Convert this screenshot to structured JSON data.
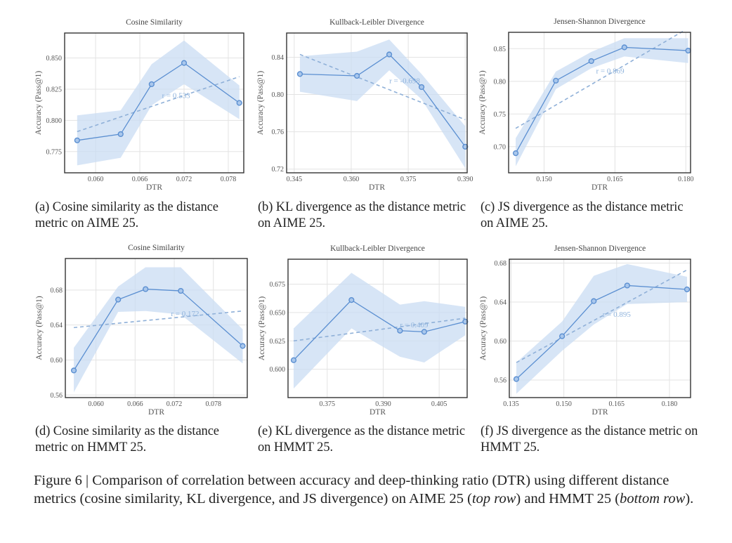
{
  "figure": {
    "caption_prefix": "Figure 6 | Comparison of correlation between accuracy and deep-thinking ratio (DTR) using different distance metrics (cosine similarity, KL divergence, and JS divergence) on AIME 25 (",
    "caption_em1": "top row",
    "caption_mid": ") and HMMT 25 (",
    "caption_em2": "bottom row",
    "caption_suffix": ")."
  },
  "colors": {
    "line": "#5b8fd1",
    "band": "#c9dcf3",
    "trend": "#8fb0d8",
    "frame": "#333333",
    "grid": "#e3e3e3"
  },
  "subcaptions": [
    "(a) Cosine similarity as the distance metric on AIME 25.",
    "(b) KL divergence as the distance metric on AIME 25.",
    "(c) JS divergence as the distance metric on AIME 25.",
    "(d) Cosine similarity as the distance metric on HMMT 25.",
    "(e) KL divergence as the distance metric on HMMT 25.",
    "(f) JS divergence as the distance metric on HMMT 25."
  ],
  "chart_data": [
    {
      "type": "line",
      "title": "Cosine Similarity",
      "xlabel": "DTR",
      "ylabel": "Accuracy (Pass@1)",
      "xlim": [
        0.0558,
        0.0801
      ],
      "ylim": [
        0.758,
        0.87
      ],
      "xticks": [
        0.06,
        0.066,
        0.072,
        0.078
      ],
      "xticklabels": [
        "0.060",
        "0.066",
        "0.072",
        "0.078"
      ],
      "yticks": [
        0.775,
        0.8,
        0.825,
        0.85
      ],
      "yticklabels": [
        "0.775",
        "0.800",
        "0.825",
        "0.850"
      ],
      "x": [
        0.0575,
        0.0634,
        0.0676,
        0.072,
        0.0795
      ],
      "y": [
        0.784,
        0.789,
        0.829,
        0.846,
        0.814
      ],
      "band_lower": [
        0.764,
        0.77,
        0.812,
        0.829,
        0.801
      ],
      "band_upper": [
        0.804,
        0.808,
        0.845,
        0.864,
        0.828
      ],
      "trend": [
        [
          0.0575,
          0.791
        ],
        [
          0.0795,
          0.835
        ]
      ],
      "r_label": "r = 0.533",
      "r_pos": [
        0.069,
        0.818
      ],
      "grid": true
    },
    {
      "type": "line",
      "title": "Kullback-Leibler Divergence",
      "xlabel": "DTR",
      "ylabel": "Accuracy (Pass@1)",
      "xlim": [
        0.343,
        0.3905
      ],
      "ylim": [
        0.716,
        0.866
      ],
      "xticks": [
        0.345,
        0.36,
        0.375,
        0.39
      ],
      "xticklabels": [
        "0.345",
        "0.360",
        "0.375",
        "0.390"
      ],
      "yticks": [
        0.72,
        0.76,
        0.8,
        0.84
      ],
      "yticklabels": [
        "0.72",
        "0.76",
        "0.80",
        "0.84"
      ],
      "x": [
        0.3465,
        0.3615,
        0.37,
        0.3785,
        0.39
      ],
      "y": [
        0.822,
        0.82,
        0.843,
        0.808,
        0.744
      ],
      "band_lower": [
        0.803,
        0.793,
        0.826,
        0.795,
        0.721
      ],
      "band_upper": [
        0.841,
        0.846,
        0.859,
        0.822,
        0.766
      ],
      "trend": [
        [
          0.3465,
          0.843
        ],
        [
          0.39,
          0.773
        ]
      ],
      "r_label": "r = -0.698",
      "r_pos": [
        0.37,
        0.812
      ],
      "grid": true
    },
    {
      "type": "line",
      "title": "Jensen-Shannon Divergence",
      "xlabel": "DTR",
      "ylabel": "Accuracy (Pass@1)",
      "xlim": [
        0.1425,
        0.181
      ],
      "ylim": [
        0.66,
        0.875
      ],
      "xticks": [
        0.15,
        0.165,
        0.18
      ],
      "xticklabels": [
        "0.150",
        "0.165",
        "0.180"
      ],
      "yticks": [
        0.7,
        0.75,
        0.8,
        0.85
      ],
      "yticklabels": [
        "0.70",
        "0.75",
        "0.80",
        "0.85"
      ],
      "x": [
        0.144,
        0.1525,
        0.16,
        0.167,
        0.1805
      ],
      "y": [
        0.69,
        0.801,
        0.831,
        0.852,
        0.847
      ],
      "band_lower": [
        0.67,
        0.788,
        0.82,
        0.838,
        0.828
      ],
      "band_upper": [
        0.713,
        0.815,
        0.845,
        0.866,
        0.866
      ],
      "trend": [
        [
          0.144,
          0.728
        ],
        [
          0.1795,
          0.877
        ]
      ],
      "r_label": "r = 0.869",
      "r_pos": [
        0.161,
        0.812
      ],
      "grid": true
    },
    {
      "type": "line",
      "title": "Cosine Similarity",
      "xlabel": "DTR",
      "ylabel": "Accuracy (Pass@1)",
      "xlim": [
        0.0553,
        0.0832
      ],
      "ylim": [
        0.557,
        0.716
      ],
      "xticks": [
        0.06,
        0.066,
        0.072,
        0.078
      ],
      "xticklabels": [
        "0.060",
        "0.066",
        "0.072",
        "0.078"
      ],
      "yticks": [
        0.56,
        0.6,
        0.64,
        0.68
      ],
      "yticklabels": [
        "0.56",
        "0.60",
        "0.64",
        "0.68"
      ],
      "x": [
        0.0566,
        0.0634,
        0.0676,
        0.073,
        0.0825
      ],
      "y": [
        0.588,
        0.669,
        0.681,
        0.679,
        0.616
      ],
      "band_lower": [
        0.563,
        0.655,
        0.656,
        0.652,
        0.596
      ],
      "band_upper": [
        0.614,
        0.684,
        0.706,
        0.706,
        0.635
      ],
      "trend": [
        [
          0.0566,
          0.637
        ],
        [
          0.0825,
          0.656
        ]
      ],
      "r_label": "r = 0.172",
      "r_pos": [
        0.0715,
        0.65
      ],
      "grid": true
    },
    {
      "type": "line",
      "title": "Kullback-Leibler Divergence",
      "xlabel": "DTR",
      "ylabel": "Accuracy (Pass@1)",
      "xlim": [
        0.3645,
        0.4125
      ],
      "ylim": [
        0.575,
        0.697
      ],
      "xticks": [
        0.375,
        0.39,
        0.405
      ],
      "xticklabels": [
        "0.375",
        "0.390",
        "0.405"
      ],
      "yticks": [
        0.6,
        0.625,
        0.65,
        0.675
      ],
      "yticklabels": [
        "0.600",
        "0.625",
        "0.650",
        "0.675"
      ],
      "x": [
        0.366,
        0.3815,
        0.3945,
        0.401,
        0.412
      ],
      "y": [
        0.608,
        0.661,
        0.634,
        0.633,
        0.642
      ],
      "band_lower": [
        0.583,
        0.636,
        0.611,
        0.606,
        0.63
      ],
      "band_upper": [
        0.636,
        0.685,
        0.657,
        0.66,
        0.655
      ],
      "trend": [
        [
          0.366,
          0.625
        ],
        [
          0.412,
          0.645
        ]
      ],
      "r_label": "r = 0.409",
      "r_pos": [
        0.3945,
        0.637
      ],
      "grid": true
    },
    {
      "type": "line",
      "title": "Jensen-Shannon Divergence",
      "xlabel": "DTR",
      "ylabel": "Accuracy (Pass@1)",
      "xlim": [
        0.1345,
        0.186
      ],
      "ylim": [
        0.542,
        0.684
      ],
      "xticks": [
        0.135,
        0.15,
        0.165,
        0.18
      ],
      "xticklabels": [
        "0.135",
        "0.150",
        "0.165",
        "0.180"
      ],
      "yticks": [
        0.56,
        0.6,
        0.64,
        0.68
      ],
      "yticklabels": [
        "0.56",
        "0.60",
        "0.64",
        "0.68"
      ],
      "x": [
        0.1365,
        0.1495,
        0.1585,
        0.168,
        0.185
      ],
      "y": [
        0.561,
        0.605,
        0.641,
        0.657,
        0.653
      ],
      "band_lower": [
        0.546,
        0.59,
        0.617,
        0.638,
        0.64
      ],
      "band_upper": [
        0.578,
        0.62,
        0.667,
        0.679,
        0.666
      ],
      "trend": [
        [
          0.1365,
          0.578
        ],
        [
          0.185,
          0.673
        ]
      ],
      "r_label": "r = 0.895",
      "r_pos": [
        0.161,
        0.625
      ],
      "grid": true
    }
  ]
}
